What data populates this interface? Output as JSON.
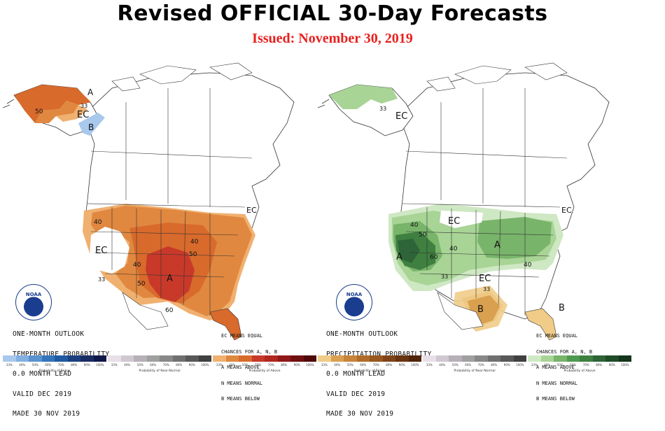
{
  "header": {
    "title": "Revised OFFICIAL 30-Day Forecasts",
    "issued": "Issued: November 30, 2019"
  },
  "logo_text": "NOAA",
  "colors": {
    "title": "#000000",
    "issued": "#e8201e",
    "temp_above_33": "#f0b070",
    "temp_above_40": "#e08840",
    "temp_above_50": "#d86a2c",
    "temp_above_60": "#c8392a",
    "temp_below_33": "#a8c8ec",
    "precip_above_33": "#cfe8c4",
    "precip_above_40": "#a8d496",
    "precip_above_50": "#78b46a",
    "precip_above_60": "#3f8040",
    "precip_above_70": "#2e6438",
    "precip_below_33": "#f0cc88",
    "precip_below_40": "#d9a050"
  },
  "left_map": {
    "outlook": [
      "ONE-MONTH OUTLOOK",
      "TEMPERATURE PROBABILITY",
      "0.0 MONTH LEAD",
      "VALID DEC 2019",
      "MADE 30 NOV 2019"
    ],
    "legend": [
      "EC MEANS EQUAL",
      "CHANCES FOR A, N, B",
      "A MEANS ABOVE",
      "N MEANS NORMAL",
      "B MEANS BELOW"
    ],
    "labels": {
      "a_alaska": "A",
      "ec_alaska": "EC",
      "b_alaska": "B",
      "p50_alaska": "50",
      "p33_alaska": "33",
      "ec_west": "EC",
      "p40_west": "40",
      "p33_west": "33",
      "p40_mid": "40",
      "p50_mid": "50",
      "a_south": "A",
      "p50_east": "50",
      "p60_south": "60",
      "p40_east": "40",
      "ec_maine": "EC"
    }
  },
  "right_map": {
    "outlook": [
      "ONE-MONTH OUTLOOK",
      "PRECIPITATION PROBABILITY",
      "0.0 MONTH LEAD",
      "VALID DEC 2019",
      "MADE 30 NOV 2019"
    ],
    "legend": [
      "EC MEANS EQUAL",
      "CHANCES FOR A, N, B",
      "A MEANS ABOVE",
      "N MEANS NORMAL",
      "B MEANS BELOW"
    ],
    "labels": {
      "ec_alaska": "EC",
      "p33_alaska": "33",
      "ec_northwest": "EC",
      "a_east": "A",
      "a_west": "A",
      "p40_west": "40",
      "p50_west": "50",
      "p60_west": "60",
      "p40_mid": "40",
      "p40_east": "40",
      "ec_south": "EC",
      "p33_south": "33",
      "b_texas": "B",
      "b_florida": "B",
      "ec_maine": "EC",
      "p33_mid": "33"
    }
  },
  "colorbars": {
    "below": {
      "caption": "Probability of Below",
      "ticks": [
        "33%",
        "40%",
        "50%",
        "60%",
        "70%",
        "80%",
        "90%",
        "100%"
      ]
    },
    "normal": {
      "caption": "Probability of Near-Normal",
      "ticks": [
        "33%",
        "40%",
        "50%",
        "60%",
        "70%",
        "80%",
        "90%",
        "100%"
      ]
    },
    "above": {
      "caption": "Probability of Above",
      "ticks": [
        "33%",
        "40%",
        "50%",
        "60%",
        "70%",
        "80%",
        "90%",
        "100%"
      ]
    }
  }
}
